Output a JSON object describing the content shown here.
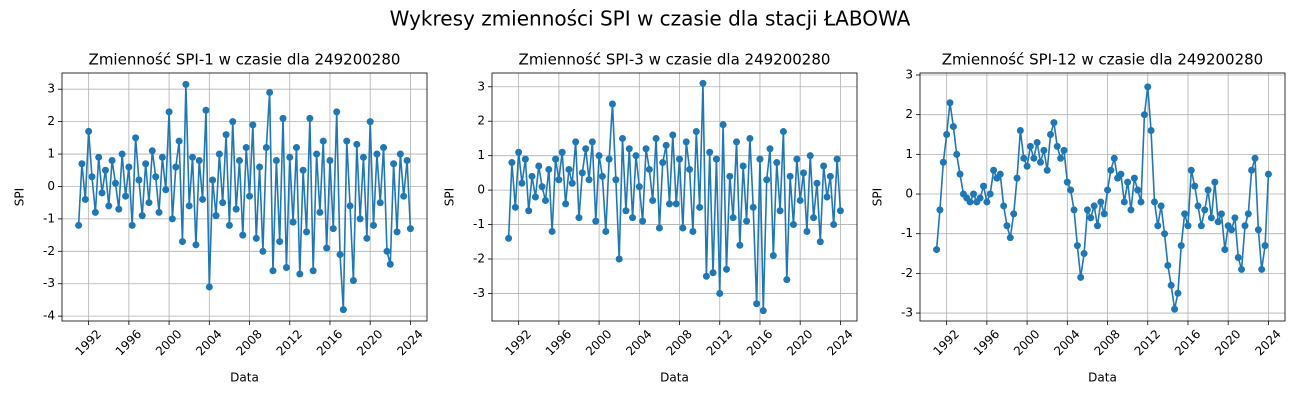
{
  "title": "Wykresy zmienności SPI w czasie dla stacji ŁABOWA",
  "chart_data": [
    {
      "type": "line",
      "title": "Zmienność SPI-1 w czasie dla 249200280",
      "x_label": "Data",
      "y_label": "SPI",
      "color": "#1f77b4",
      "grid": true,
      "xlim": [
        1989.35,
        2025.65
      ],
      "xticks": [
        1992,
        1996,
        2000,
        2004,
        2008,
        2012,
        2016,
        2020,
        2024
      ],
      "ylim": [
        -4.15,
        3.5
      ],
      "yticks": [
        -4,
        -3,
        -2,
        -1,
        0,
        1,
        2,
        3
      ],
      "x": [
        1991,
        1991.33,
        1991.67,
        1992,
        1992.33,
        1992.67,
        1993,
        1993.33,
        1993.67,
        1994,
        1994.33,
        1994.67,
        1995,
        1995.33,
        1995.67,
        1996,
        1996.33,
        1996.67,
        1997,
        1997.33,
        1997.67,
        1998,
        1998.33,
        1998.67,
        1999,
        1999.33,
        1999.67,
        2000,
        2000.33,
        2000.67,
        2001,
        2001.33,
        2001.67,
        2002,
        2002.33,
        2002.67,
        2003,
        2003.33,
        2003.67,
        2004,
        2004.33,
        2004.67,
        2005,
        2005.33,
        2005.67,
        2006,
        2006.33,
        2006.67,
        2007,
        2007.33,
        2007.67,
        2008,
        2008.33,
        2008.67,
        2009,
        2009.33,
        2009.67,
        2010,
        2010.33,
        2010.67,
        2011,
        2011.33,
        2011.67,
        2012,
        2012.33,
        2012.67,
        2013,
        2013.33,
        2013.67,
        2014,
        2014.33,
        2014.67,
        2015,
        2015.33,
        2015.67,
        2016,
        2016.33,
        2016.67,
        2017,
        2017.33,
        2017.67,
        2018,
        2018.33,
        2018.67,
        2019,
        2019.33,
        2019.67,
        2020,
        2020.33,
        2020.67,
        2021,
        2021.33,
        2021.67,
        2022,
        2022.33,
        2022.67,
        2023,
        2023.33,
        2023.67,
        2024
      ],
      "values": [
        -1.2,
        0.7,
        -0.4,
        1.7,
        0.3,
        -0.8,
        0.9,
        -0.2,
        0.5,
        -0.6,
        0.8,
        0.1,
        -0.7,
        1.0,
        -0.3,
        0.6,
        -1.2,
        1.5,
        0.2,
        -0.9,
        0.7,
        -0.5,
        1.1,
        0.3,
        -0.8,
        0.9,
        -0.1,
        2.3,
        -1.0,
        0.6,
        1.4,
        -1.7,
        3.15,
        -0.6,
        0.9,
        -1.8,
        0.8,
        -0.4,
        2.35,
        -3.1,
        0.2,
        -0.9,
        1.0,
        -0.5,
        1.6,
        -1.2,
        2.0,
        -0.7,
        0.8,
        -1.5,
        1.2,
        -0.3,
        1.9,
        -1.6,
        0.6,
        -2.0,
        1.2,
        2.9,
        -2.6,
        0.8,
        -1.7,
        2.1,
        -2.5,
        0.9,
        -1.1,
        1.2,
        -2.7,
        0.5,
        -1.4,
        2.1,
        -2.6,
        1.0,
        -0.8,
        1.4,
        -1.9,
        0.8,
        -1.3,
        2.3,
        -2.1,
        -3.8,
        1.4,
        -0.6,
        -2.9,
        1.3,
        -1.0,
        0.9,
        -1.6,
        2.0,
        -1.2,
        1.0,
        -0.5,
        1.2,
        -2.0,
        -2.4,
        0.7,
        -1.4,
        1.0,
        -0.3,
        0.8,
        -1.3
      ]
    },
    {
      "type": "line",
      "title": "Zmienność SPI-3 w czasie dla 249200280",
      "x_label": "Data",
      "y_label": "SPI",
      "color": "#1f77b4",
      "grid": true,
      "xlim": [
        1989.35,
        2025.65
      ],
      "xticks": [
        1992,
        1996,
        2000,
        2004,
        2008,
        2012,
        2016,
        2020,
        2024
      ],
      "ylim": [
        -3.8,
        3.4
      ],
      "yticks": [
        -3,
        -2,
        -1,
        0,
        1,
        2,
        3
      ],
      "x": [
        1991,
        1991.33,
        1991.67,
        1992,
        1992.33,
        1992.67,
        1993,
        1993.33,
        1993.67,
        1994,
        1994.33,
        1994.67,
        1995,
        1995.33,
        1995.67,
        1996,
        1996.33,
        1996.67,
        1997,
        1997.33,
        1997.67,
        1998,
        1998.33,
        1998.67,
        1999,
        1999.33,
        1999.67,
        2000,
        2000.33,
        2000.67,
        2001,
        2001.33,
        2001.67,
        2002,
        2002.33,
        2002.67,
        2003,
        2003.33,
        2003.67,
        2004,
        2004.33,
        2004.67,
        2005,
        2005.33,
        2005.67,
        2006,
        2006.33,
        2006.67,
        2007,
        2007.33,
        2007.67,
        2008,
        2008.33,
        2008.67,
        2009,
        2009.33,
        2009.67,
        2010,
        2010.33,
        2010.67,
        2011,
        2011.33,
        2011.67,
        2012,
        2012.33,
        2012.67,
        2013,
        2013.33,
        2013.67,
        2014,
        2014.33,
        2014.67,
        2015,
        2015.33,
        2015.67,
        2016,
        2016.33,
        2016.67,
        2017,
        2017.33,
        2017.67,
        2018,
        2018.33,
        2018.67,
        2019,
        2019.33,
        2019.67,
        2020,
        2020.33,
        2020.67,
        2021,
        2021.33,
        2021.67,
        2022,
        2022.33,
        2022.67,
        2023,
        2023.33,
        2023.67,
        2024
      ],
      "values": [
        -1.4,
        0.8,
        -0.5,
        1.1,
        0.2,
        0.9,
        -0.6,
        0.4,
        -0.2,
        0.7,
        0.1,
        -0.3,
        0.6,
        -1.2,
        0.9,
        0.3,
        1.1,
        -0.4,
        0.6,
        0.2,
        1.4,
        -0.8,
        0.5,
        1.2,
        0.3,
        1.4,
        -0.9,
        1.0,
        0.4,
        -1.2,
        0.9,
        2.5,
        0.3,
        -2.0,
        1.5,
        -0.6,
        1.2,
        -0.8,
        1.0,
        0.1,
        -0.9,
        1.2,
        0.6,
        -0.3,
        1.5,
        -1.1,
        0.8,
        1.3,
        -0.4,
        1.6,
        -0.4,
        0.9,
        -1.1,
        1.4,
        0.6,
        -1.2,
        1.7,
        -0.5,
        3.1,
        -2.5,
        1.1,
        -2.4,
        0.9,
        -3.0,
        1.9,
        -2.3,
        0.4,
        -0.8,
        1.4,
        -1.6,
        0.7,
        -0.9,
        1.5,
        -0.5,
        -3.3,
        0.9,
        -3.5,
        0.3,
        1.2,
        -1.9,
        0.8,
        -0.6,
        1.7,
        -2.6,
        0.4,
        -1.0,
        0.9,
        -0.3,
        0.5,
        -1.2,
        1.0,
        -0.8,
        0.2,
        -1.5,
        0.7,
        -0.2,
        0.4,
        -1.0,
        0.9,
        -0.6
      ]
    },
    {
      "type": "line",
      "title": "Zmienność SPI-12 w czasie dla 249200280",
      "x_label": "Data",
      "y_label": "SPI",
      "color": "#1f77b4",
      "grid": true,
      "xlim": [
        1989.35,
        2025.65
      ],
      "xticks": [
        1992,
        1996,
        2000,
        2004,
        2008,
        2012,
        2016,
        2020,
        2024
      ],
      "ylim": [
        -3.2,
        3.05
      ],
      "yticks": [
        -3,
        -2,
        -1,
        0,
        1,
        2,
        3
      ],
      "x": [
        1991,
        1991.33,
        1991.67,
        1992,
        1992.33,
        1992.67,
        1993,
        1993.33,
        1993.67,
        1994,
        1994.33,
        1994.67,
        1995,
        1995.33,
        1995.67,
        1996,
        1996.33,
        1996.67,
        1997,
        1997.33,
        1997.67,
        1998,
        1998.33,
        1998.67,
        1999,
        1999.33,
        1999.67,
        2000,
        2000.33,
        2000.67,
        2001,
        2001.33,
        2001.67,
        2002,
        2002.33,
        2002.67,
        2003,
        2003.33,
        2003.67,
        2004,
        2004.33,
        2004.67,
        2005,
        2005.33,
        2005.67,
        2006,
        2006.33,
        2006.67,
        2007,
        2007.33,
        2007.67,
        2008,
        2008.33,
        2008.67,
        2009,
        2009.33,
        2009.67,
        2010,
        2010.33,
        2010.67,
        2011,
        2011.33,
        2011.67,
        2012,
        2012.33,
        2012.67,
        2013,
        2013.33,
        2013.67,
        2014,
        2014.33,
        2014.67,
        2015,
        2015.33,
        2015.67,
        2016,
        2016.33,
        2016.67,
        2017,
        2017.33,
        2017.67,
        2018,
        2018.33,
        2018.67,
        2019,
        2019.33,
        2019.67,
        2020,
        2020.33,
        2020.67,
        2021,
        2021.33,
        2021.67,
        2022,
        2022.33,
        2022.67,
        2023,
        2023.33,
        2023.67,
        2024
      ],
      "values": [
        -1.4,
        -0.4,
        0.8,
        1.5,
        2.3,
        1.7,
        1.0,
        0.5,
        0.0,
        -0.1,
        -0.2,
        0.0,
        -0.2,
        -0.1,
        0.2,
        -0.2,
        0.0,
        0.6,
        0.4,
        0.5,
        -0.3,
        -0.8,
        -1.1,
        -0.5,
        0.4,
        1.6,
        0.9,
        0.7,
        1.2,
        0.9,
        1.3,
        0.8,
        1.1,
        0.6,
        1.5,
        1.8,
        1.2,
        0.9,
        1.1,
        0.3,
        0.1,
        -0.4,
        -1.3,
        -2.1,
        -1.5,
        -0.4,
        -0.6,
        -0.3,
        -0.8,
        -0.2,
        -0.5,
        0.1,
        0.6,
        0.9,
        0.4,
        0.5,
        -0.2,
        0.3,
        -0.4,
        0.4,
        0.1,
        -0.2,
        2.0,
        2.7,
        1.6,
        -0.2,
        -0.8,
        -0.3,
        -1.0,
        -1.8,
        -2.3,
        -2.9,
        -2.5,
        -1.3,
        -0.5,
        -0.8,
        0.6,
        0.2,
        -0.3,
        -0.8,
        -0.4,
        0.1,
        -0.6,
        0.3,
        -0.7,
        -0.5,
        -1.4,
        -0.8,
        -0.9,
        -0.6,
        -1.6,
        -1.9,
        -0.8,
        -0.5,
        0.6,
        0.9,
        -0.9,
        -1.9,
        -1.3,
        0.5
      ]
    }
  ]
}
